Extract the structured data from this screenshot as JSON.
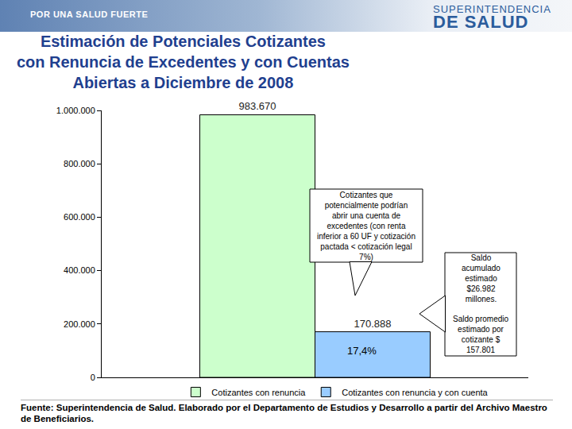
{
  "chart_data": {
    "type": "bar",
    "title": "Estimación de Potenciales Cotizantes\ncon Renuncia de Excedentes y con Cuentas\nAbiertas a Diciembre de 2008",
    "categories": [
      null
    ],
    "series": [
      {
        "name": "Cotizantes con renuncia",
        "color": "#ccffcc",
        "values": [
          983670
        ],
        "value_labels": [
          "983.670"
        ]
      },
      {
        "name": "Cotizantes con renuncia y con cuenta",
        "color": "#99ccff",
        "values": [
          170888
        ],
        "value_labels": [
          "170.888"
        ]
      }
    ],
    "ylim": [
      0,
      1000000
    ],
    "yticks": [
      0,
      {
        "value": 200000,
        "label": "200.000"
      },
      {
        "value": 400000,
        "label": "400.000"
      },
      {
        "value": 600000,
        "label": "600.000"
      },
      {
        "value": 800000,
        "label": "800.000"
      },
      {
        "value": 1000000,
        "label": "1.000.000"
      }
    ],
    "grid": false,
    "legend": "bottom",
    "data_labels": true,
    "annotations": [
      {
        "text": "17,4%"
      },
      {
        "text": "Cotizantes que\npotencialmente podrían\nabrir una cuenta de\nexcedentes (con renta\ninferior a 60 UF y cotización\npactada < cotización legal\n7%)"
      },
      {
        "text": "Saldo\nacumulado\nestimado\n$26.982\nmillones."
      },
      {
        "text": "Saldo promedio\nestimado por\ncotizante $\n157.801"
      }
    ]
  },
  "header": {
    "left": "POR UNA SALUD FUERTE",
    "right": [
      "SUPERINTENDENCIA",
      "DE SALUD"
    ]
  },
  "source": "Fuente:  Superintendencia de Salud. Elaborado por el Departamento de Estudios y Desarrollo a partir del Archivo Maestro de Beneficiarios."
}
